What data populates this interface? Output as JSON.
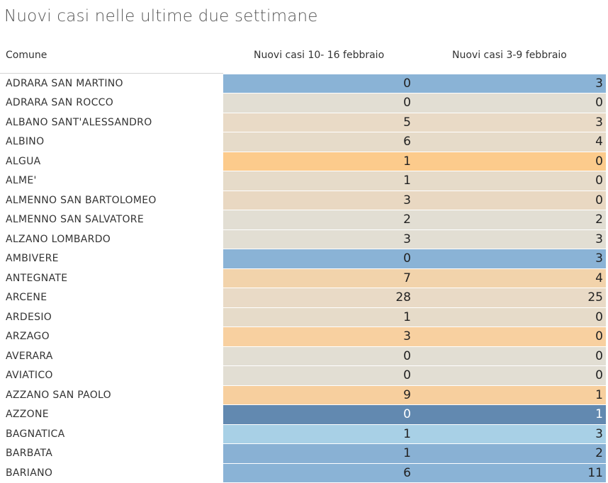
{
  "title": "Nuovi casi nelle ultime due settimane",
  "columns": {
    "comune": "Comune",
    "week1": "Nuovi casi  10- 16 febbraio",
    "week2": "Nuovi casi  3-9 febbraio"
  },
  "chart_data": {
    "type": "table",
    "columns": [
      "Comune",
      "Nuovi casi  10- 16 febbraio",
      "Nuovi casi  3-9 febbraio"
    ],
    "rows": [
      {
        "comune": "ADRARA SAN MARTINO",
        "week1": 0,
        "week2": 3,
        "color": "#8ab3d6"
      },
      {
        "comune": "ADRARA SAN ROCCO",
        "week1": 0,
        "week2": 0,
        "color": "#e2ded3"
      },
      {
        "comune": "ALBANO SANT'ALESSANDRO",
        "week1": 5,
        "week2": 3,
        "color": "#e9dac6"
      },
      {
        "comune": "ALBINO",
        "week1": 6,
        "week2": 4,
        "color": "#e6dbc9"
      },
      {
        "comune": "ALGUA",
        "week1": 1,
        "week2": 0,
        "color": "#fccb8c"
      },
      {
        "comune": "ALME'",
        "week1": 1,
        "week2": 0,
        "color": "#e6dbc9"
      },
      {
        "comune": "ALMENNO SAN BARTOLOMEO",
        "week1": 3,
        "week2": 0,
        "color": "#e9d8c2"
      },
      {
        "comune": "ALMENNO SAN SALVATORE",
        "week1": 2,
        "week2": 2,
        "color": "#e2ded3"
      },
      {
        "comune": "ALZANO LOMBARDO",
        "week1": 3,
        "week2": 3,
        "color": "#e2ded3"
      },
      {
        "comune": "AMBIVERE",
        "week1": 0,
        "week2": 3,
        "color": "#8ab3d6"
      },
      {
        "comune": "ANTEGNATE",
        "week1": 7,
        "week2": 4,
        "color": "#f2d3ab"
      },
      {
        "comune": "ARCENE",
        "week1": 28,
        "week2": 25,
        "color": "#e9dac6"
      },
      {
        "comune": "ARDESIO",
        "week1": 1,
        "week2": 0,
        "color": "#e6dbc9"
      },
      {
        "comune": "ARZAGO",
        "week1": 3,
        "week2": 0,
        "color": "#f8d0a0"
      },
      {
        "comune": "AVERARA",
        "week1": 0,
        "week2": 0,
        "color": "#e2ded3"
      },
      {
        "comune": "AVIATICO",
        "week1": 0,
        "week2": 0,
        "color": "#e2ded3"
      },
      {
        "comune": "AZZANO SAN PAOLO",
        "week1": 9,
        "week2": 1,
        "color": "#f7cf9e"
      },
      {
        "comune": "AZZONE",
        "week1": 0,
        "week2": 1,
        "color": "#6289b0",
        "dark": true
      },
      {
        "comune": "BAGNATICA",
        "week1": 1,
        "week2": 3,
        "color": "#a8d0e6"
      },
      {
        "comune": "BARBATA",
        "week1": 1,
        "week2": 2,
        "color": "#89b1d4"
      },
      {
        "comune": "BARIANO",
        "week1": 6,
        "week2": 11,
        "color": "#8ab3d6"
      }
    ]
  }
}
